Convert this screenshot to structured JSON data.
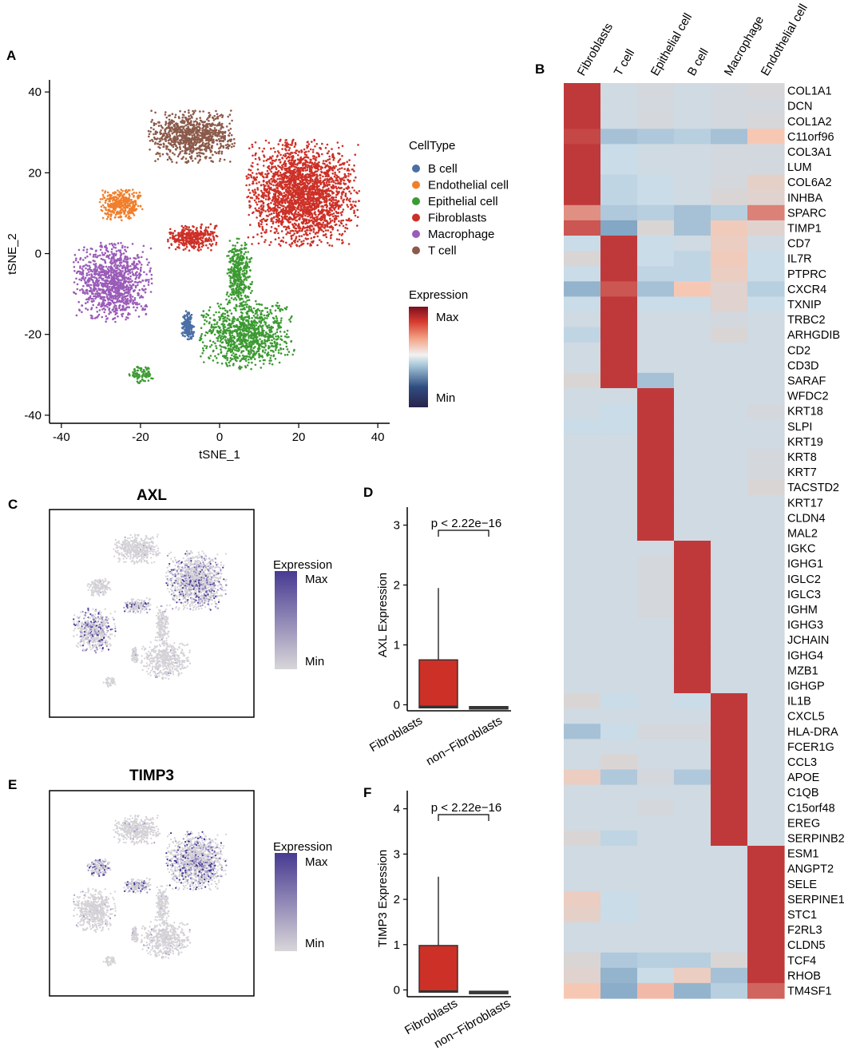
{
  "chart_data": [
    {
      "panel": "A",
      "type": "scatter",
      "title": "",
      "xlabel": "tSNE_1",
      "ylabel": "tSNE_2",
      "xlim": [
        -43,
        43
      ],
      "ylim": [
        -42,
        43
      ],
      "xticks": [
        -40,
        -20,
        0,
        20,
        40
      ],
      "yticks": [
        -40,
        -20,
        0,
        20,
        40
      ],
      "legend_title": "CellType",
      "categories": [
        "B cell",
        "Endothelial cell",
        "Epithelial cell",
        "Fibroblasts",
        "Macrophage",
        "T cell"
      ],
      "colors": [
        "#4a6fa5",
        "#f07f2c",
        "#3c9a32",
        "#cd3027",
        "#9a5cb8",
        "#8b5a4a"
      ],
      "clusters": [
        {
          "cell_type": "Fibroblasts",
          "center": [
            21,
            15
          ],
          "spread": [
            13,
            12
          ],
          "n": 2400
        },
        {
          "cell_type": "Fibroblasts",
          "center": [
            -7,
            4
          ],
          "spread": [
            6,
            3
          ],
          "n": 350
        },
        {
          "cell_type": "T cell",
          "center": [
            -7,
            29
          ],
          "spread": [
            10,
            6
          ],
          "n": 900
        },
        {
          "cell_type": "Endothelial cell",
          "center": [
            -25,
            12
          ],
          "spread": [
            5,
            3.5
          ],
          "n": 350
        },
        {
          "cell_type": "Macrophage",
          "center": [
            -27,
            -7
          ],
          "spread": [
            9,
            9
          ],
          "n": 1100
        },
        {
          "cell_type": "Epithelial cell",
          "center": [
            7,
            -20
          ],
          "spread": [
            11,
            8
          ],
          "n": 1000
        },
        {
          "cell_type": "Epithelial cell",
          "center": [
            5,
            -5
          ],
          "spread": [
            3,
            8
          ],
          "n": 400
        },
        {
          "cell_type": "Epithelial cell",
          "center": [
            -20,
            -30
          ],
          "spread": [
            3,
            2
          ],
          "n": 80
        },
        {
          "cell_type": "B cell",
          "center": [
            -8,
            -18
          ],
          "spread": [
            1.5,
            3.5
          ],
          "n": 160
        }
      ],
      "expression_legend": {
        "title": "Expression",
        "max_label": "Max",
        "min_label": "Min",
        "colors": [
          "#2a234a",
          "#2e4d80",
          "#a8c8da",
          "#f2f2f2",
          "#f3a589",
          "#d73b30",
          "#7a0f1e"
        ]
      }
    },
    {
      "panel": "B",
      "type": "heatmap",
      "columns": [
        "Fibroblasts",
        "T cell",
        "Epithelial cell",
        "B cell",
        "Macrophage",
        "Endothelial cell"
      ],
      "rows": [
        "COL1A1",
        "DCN",
        "COL1A2",
        "C11orf96",
        "COL3A1",
        "LUM",
        "COL6A2",
        "INHBA",
        "SPARC",
        "TIMP1",
        "CD7",
        "IL7R",
        "PTPRC",
        "CXCR4",
        "TXNIP",
        "TRBC2",
        "ARHGDIB",
        "CD2",
        "CD3D",
        "SARAF",
        "WFDC2",
        "KRT18",
        "SLPI",
        "KRT19",
        "KRT8",
        "KRT7",
        "TACSTD2",
        "KRT17",
        "CLDN4",
        "MAL2",
        "IGKC",
        "IGHG1",
        "IGLC2",
        "IGLC3",
        "IGHM",
        "IGHG3",
        "JCHAIN",
        "IGHG4",
        "MZB1",
        "IGHGP",
        "IL1B",
        "CXCL5",
        "HLA-DRA",
        "FCER1G",
        "CCL3",
        "APOE",
        "C1QB",
        "C15orf48",
        "EREG",
        "SERPINB2",
        "ESM1",
        "ANGPT2",
        "SELE",
        "SERPINE1",
        "STC1",
        "F2RL3",
        "CLDN5",
        "TCF4",
        "RHOB",
        "TM4SF1"
      ],
      "scale": "-1 (blue) .. 0 (light) .. 1 (red)",
      "values": [
        [
          0.95,
          0.05,
          0.1,
          0.05,
          0.08,
          0.12
        ],
        [
          0.95,
          0.05,
          0.08,
          0.05,
          0.08,
          0.08
        ],
        [
          0.95,
          0.05,
          0.1,
          0.05,
          0.08,
          0.12
        ],
        [
          0.85,
          -0.2,
          -0.15,
          -0.1,
          -0.2,
          0.4
        ],
        [
          0.95,
          0.0,
          0.05,
          0.05,
          0.08,
          0.08
        ],
        [
          0.95,
          0.0,
          0.05,
          0.05,
          0.08,
          0.08
        ],
        [
          0.95,
          -0.05,
          0.0,
          0.05,
          0.1,
          0.25
        ],
        [
          0.95,
          -0.05,
          0.0,
          0.05,
          0.15,
          0.2
        ],
        [
          0.6,
          -0.15,
          -0.1,
          -0.2,
          -0.1,
          0.65
        ],
        [
          0.8,
          -0.4,
          0.15,
          -0.2,
          0.35,
          0.2
        ],
        [
          0.0,
          0.9,
          0.0,
          0.05,
          0.3,
          0.05
        ],
        [
          0.15,
          0.92,
          0.0,
          -0.05,
          0.35,
          0.0
        ],
        [
          0.0,
          0.9,
          -0.05,
          -0.05,
          0.3,
          0.0
        ],
        [
          -0.3,
          0.8,
          -0.2,
          0.4,
          0.2,
          -0.1
        ],
        [
          0.0,
          0.9,
          0.0,
          0.0,
          0.2,
          0.0
        ],
        [
          0.05,
          0.95,
          0.05,
          0.05,
          0.08,
          0.05
        ],
        [
          -0.05,
          0.95,
          0.05,
          0.05,
          0.15,
          0.05
        ],
        [
          0.05,
          0.95,
          0.05,
          0.05,
          0.05,
          0.05
        ],
        [
          0.05,
          0.95,
          0.05,
          0.05,
          0.05,
          0.05
        ],
        [
          0.15,
          0.95,
          -0.2,
          0.05,
          0.05,
          0.05
        ],
        [
          0.05,
          0.05,
          0.95,
          0.05,
          0.05,
          0.05
        ],
        [
          0.05,
          0.0,
          0.95,
          0.05,
          0.05,
          0.1
        ],
        [
          0.0,
          0.0,
          0.95,
          0.05,
          0.05,
          0.05
        ],
        [
          0.05,
          0.05,
          0.95,
          0.05,
          0.05,
          0.05
        ],
        [
          0.05,
          0.05,
          0.95,
          0.05,
          0.05,
          0.1
        ],
        [
          0.05,
          0.05,
          0.95,
          0.05,
          0.05,
          0.1
        ],
        [
          0.05,
          0.05,
          0.95,
          0.05,
          0.05,
          0.15
        ],
        [
          0.05,
          0.05,
          0.95,
          0.05,
          0.05,
          0.05
        ],
        [
          0.05,
          0.05,
          0.95,
          0.05,
          0.05,
          0.05
        ],
        [
          0.05,
          0.05,
          0.95,
          0.05,
          0.05,
          0.05
        ],
        [
          0.05,
          0.05,
          0.05,
          0.95,
          0.05,
          0.05
        ],
        [
          0.05,
          0.05,
          0.1,
          0.95,
          0.05,
          0.05
        ],
        [
          0.05,
          0.05,
          0.1,
          0.95,
          0.05,
          0.05
        ],
        [
          0.05,
          0.05,
          0.1,
          0.95,
          0.05,
          0.05
        ],
        [
          0.05,
          0.05,
          0.1,
          0.95,
          0.05,
          0.05
        ],
        [
          0.05,
          0.05,
          0.05,
          0.95,
          0.05,
          0.05
        ],
        [
          0.05,
          0.05,
          0.05,
          0.95,
          0.05,
          0.05
        ],
        [
          0.05,
          0.05,
          0.05,
          0.95,
          0.05,
          0.05
        ],
        [
          0.05,
          0.05,
          0.05,
          0.95,
          0.05,
          0.05
        ],
        [
          0.05,
          0.05,
          0.05,
          0.95,
          0.05,
          0.05
        ],
        [
          0.15,
          0.0,
          0.05,
          0.0,
          0.95,
          0.05
        ],
        [
          0.05,
          0.05,
          0.05,
          0.05,
          0.95,
          0.05
        ],
        [
          -0.2,
          0.0,
          0.1,
          0.1,
          0.95,
          0.05
        ],
        [
          0.05,
          0.05,
          0.05,
          0.05,
          0.95,
          0.05
        ],
        [
          0.05,
          0.15,
          0.05,
          0.05,
          0.95,
          0.05
        ],
        [
          0.3,
          -0.15,
          0.1,
          -0.15,
          0.9,
          0.05
        ],
        [
          0.05,
          0.05,
          0.05,
          0.05,
          0.95,
          0.05
        ],
        [
          0.05,
          0.05,
          0.1,
          0.05,
          0.95,
          0.05
        ],
        [
          0.05,
          0.05,
          0.05,
          0.05,
          0.95,
          0.05
        ],
        [
          0.15,
          -0.05,
          0.05,
          0.05,
          0.95,
          0.05
        ],
        [
          0.05,
          0.05,
          0.05,
          0.05,
          0.05,
          0.95
        ],
        [
          0.05,
          0.05,
          0.05,
          0.05,
          0.05,
          0.95
        ],
        [
          0.05,
          0.05,
          0.05,
          0.05,
          0.05,
          0.95
        ],
        [
          0.3,
          0.0,
          0.05,
          0.05,
          0.05,
          0.95
        ],
        [
          0.25,
          0.0,
          0.05,
          0.05,
          0.05,
          0.95
        ],
        [
          0.05,
          0.05,
          0.05,
          0.05,
          0.05,
          0.95
        ],
        [
          0.05,
          0.05,
          0.05,
          0.05,
          0.05,
          0.95
        ],
        [
          0.15,
          -0.15,
          -0.1,
          -0.1,
          0.15,
          0.9
        ],
        [
          0.2,
          -0.3,
          0.0,
          0.3,
          -0.2,
          0.9
        ],
        [
          0.4,
          -0.35,
          0.45,
          -0.3,
          -0.1,
          0.75
        ]
      ]
    },
    {
      "panel": "C",
      "type": "scatter",
      "title": "AXL",
      "legend_title": "Expression",
      "max_label": "Max",
      "min_label": "Min",
      "colors": [
        "#d4d2d6",
        "#4b3c96"
      ],
      "high_expression_clusters": [
        "Fibroblasts",
        "Macrophage"
      ]
    },
    {
      "panel": "D",
      "type": "box",
      "categories": [
        "Fibroblasts",
        "non−Fibroblasts"
      ],
      "ylabel": "AXL Expression",
      "yticks": [
        0,
        1,
        2,
        3
      ],
      "ylim": [
        -0.1,
        3.3
      ],
      "annotation": "p < 2.22e−16",
      "fill": "#cd3027",
      "boxes": [
        {
          "min": -0.05,
          "q1": -0.05,
          "median": -0.03,
          "q3": 0.75,
          "max": 1.95
        },
        {
          "min": -0.05,
          "q1": -0.05,
          "median": -0.04,
          "q3": -0.03,
          "max": -0.03
        }
      ]
    },
    {
      "panel": "E",
      "type": "scatter",
      "title": "TIMP3",
      "legend_title": "Expression",
      "max_label": "Max",
      "min_label": "Min",
      "colors": [
        "#d4d2d6",
        "#3f3593"
      ],
      "high_expression_clusters": [
        "Fibroblasts",
        "Endothelial cell"
      ]
    },
    {
      "panel": "F",
      "type": "box",
      "categories": [
        "Fibroblasts",
        "non−Fibroblasts"
      ],
      "ylabel": "TIMP3 Expression",
      "yticks": [
        0,
        1,
        2,
        3,
        4
      ],
      "ylim": [
        -0.15,
        4.4
      ],
      "annotation": "p < 2.22e−16",
      "fill": "#cd3027",
      "boxes": [
        {
          "min": -0.05,
          "q1": -0.05,
          "median": -0.03,
          "q3": 0.98,
          "max": 2.5
        },
        {
          "min": -0.05,
          "q1": -0.05,
          "median": -0.04,
          "q3": -0.03,
          "max": -0.03
        }
      ]
    }
  ],
  "panel_labels": [
    "A",
    "B",
    "C",
    "D",
    "E",
    "F"
  ]
}
